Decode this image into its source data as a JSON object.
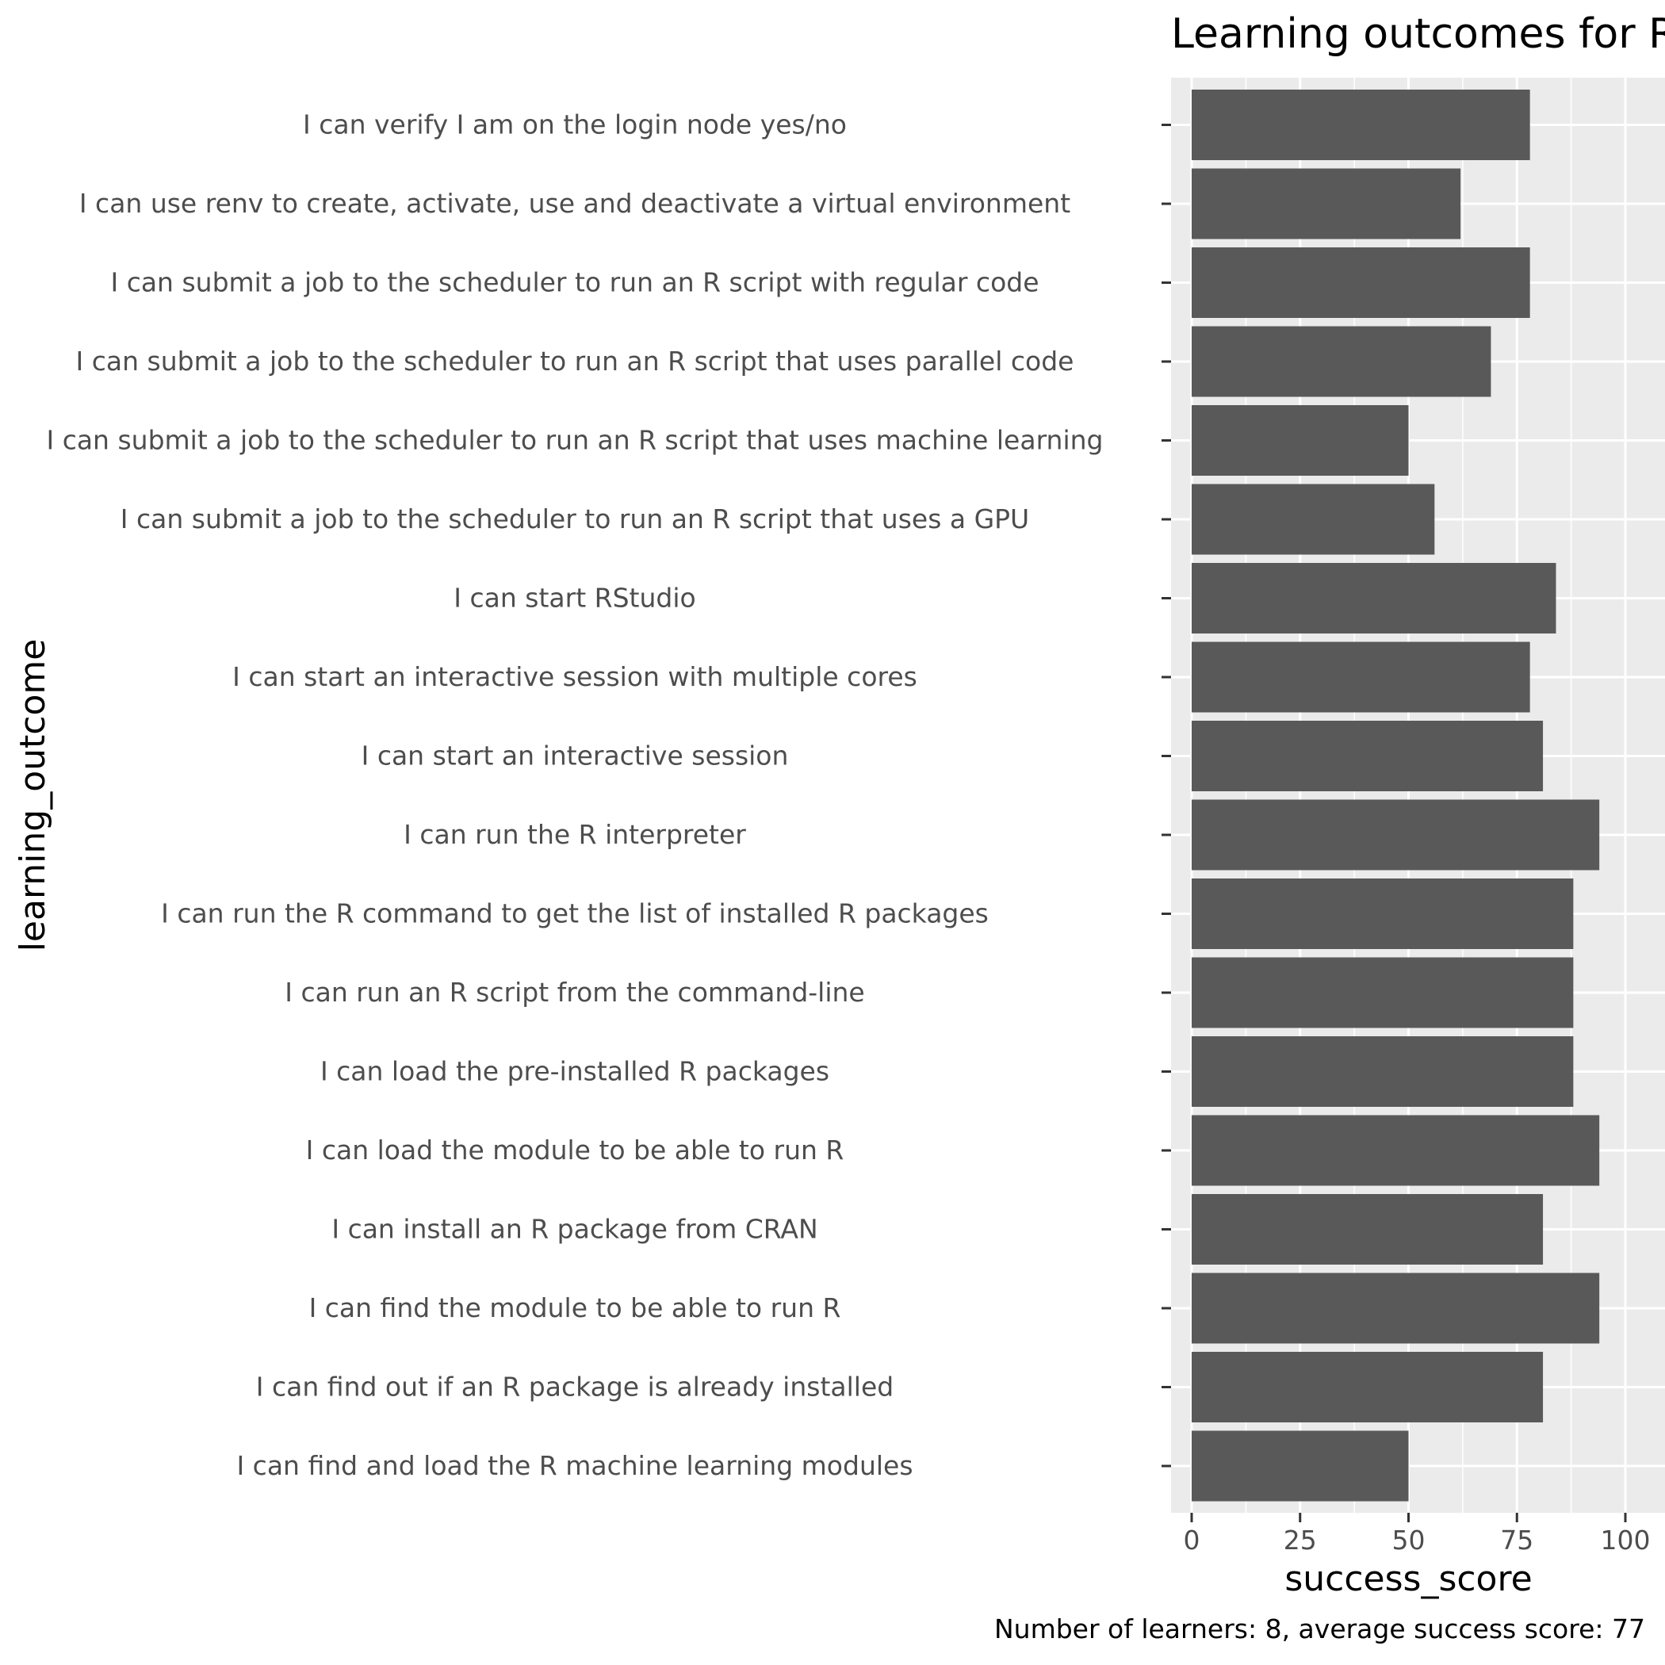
{
  "chart_data": {
    "type": "bar",
    "orientation": "horizontal",
    "title": "Learning outcomes for R",
    "xlabel": "success_score",
    "ylabel": "learning_outcome",
    "caption": "Number of learners: 8, average success score: 77",
    "xlim": [
      -5,
      103
    ],
    "xticks": [
      0,
      25,
      50,
      75,
      100
    ],
    "grid": true,
    "bar_color": "#595959",
    "panel_color": "#ebebeb",
    "categories": [
      "I can verify I am on the login node yes/no",
      "I can use renv to create, activate, use and deactivate a virtual environment",
      "I can submit a job to the scheduler to run an R script with regular code",
      "I can submit a job to the scheduler to run an R script that uses parallel code",
      "I can submit a job to the scheduler to run an R script that uses machine learning",
      "I can submit a job to the scheduler to run an R script that uses a GPU",
      "I can start RStudio",
      "I can start an interactive session with multiple cores",
      "I can start an interactive session",
      "I can run the R interpreter",
      "I can run the R command to get the list of installed R packages",
      "I can run an R script from the command-line",
      "I can load the pre-installed R packages",
      "I can load the module to be able to run R",
      "I can install an R package from CRAN",
      "I can find the module to be able to run R",
      "I can find out if an R package is already installed",
      "I can find and load the R machine learning modules"
    ],
    "values": [
      78,
      62,
      78,
      69,
      50,
      56,
      84,
      78,
      81,
      94,
      88,
      88,
      88,
      94,
      81,
      94,
      81,
      50
    ]
  }
}
